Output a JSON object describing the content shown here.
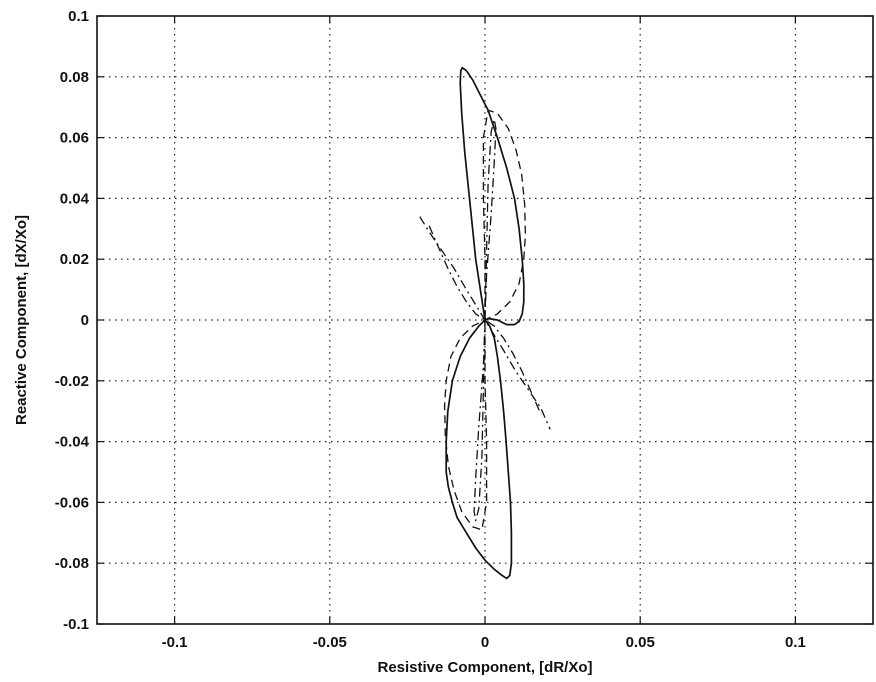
{
  "chart_data": {
    "type": "line",
    "title": "",
    "xlabel": "Resistive Component, [dR/Xo]",
    "ylabel": "Reactive Component, [dX/Xo]",
    "xlim": [
      -0.125,
      0.125
    ],
    "ylim": [
      -0.1,
      0.1
    ],
    "grid": true,
    "legend": "none",
    "x_ticks": [
      -0.1,
      -0.05,
      0,
      0.05,
      0.1
    ],
    "x_tick_labels": [
      "-0.1",
      "-0.05",
      "0",
      "0.05",
      "0.1"
    ],
    "y_ticks": [
      -0.1,
      -0.08,
      -0.06,
      -0.04,
      -0.02,
      0,
      0.02,
      0.04,
      0.06,
      0.08,
      0.1
    ],
    "y_tick_labels": [
      "-0.1",
      "-0.08",
      "-0.06",
      "-0.04",
      "-0.02",
      "0",
      "0.02",
      "0.04",
      "0.06",
      "0.08",
      "0.1"
    ],
    "series": [
      {
        "style": "solid",
        "x": [
          0,
          -0.003,
          -0.005,
          -0.0065,
          -0.0075,
          -0.008,
          -0.0078,
          -0.0073,
          -0.006,
          -0.004,
          -0.002,
          0.001,
          0.004,
          0.007,
          0.0095,
          0.011,
          0.012,
          0.0125,
          0.0125,
          0.012,
          0.011,
          0.0095,
          0.007,
          0.004,
          0.001,
          0,
          -0.002,
          -0.005,
          -0.008,
          -0.0105,
          -0.012,
          -0.0125,
          -0.0125,
          -0.0118,
          -0.0105,
          -0.009,
          -0.006,
          -0.003,
          0,
          0.003,
          0.0055,
          0.007,
          0.008,
          0.0085,
          0.0085,
          0.0082,
          0.0075,
          0.0068,
          0.006,
          0.005,
          0.004,
          0.003,
          0.0015,
          0
        ],
        "y": [
          0,
          0.02,
          0.04,
          0.055,
          0.068,
          0.078,
          0.082,
          0.083,
          0.082,
          0.079,
          0.075,
          0.069,
          0.06,
          0.05,
          0.04,
          0.03,
          0.02,
          0.012,
          0.006,
          0.002,
          -0.0005,
          -0.0015,
          -0.0015,
          0,
          0.0005,
          0,
          -0.002,
          -0.006,
          -0.012,
          -0.02,
          -0.03,
          -0.04,
          -0.05,
          -0.055,
          -0.06,
          -0.065,
          -0.07,
          -0.075,
          -0.079,
          -0.082,
          -0.084,
          -0.085,
          -0.084,
          -0.08,
          -0.07,
          -0.06,
          -0.05,
          -0.04,
          -0.03,
          -0.02,
          -0.012,
          -0.006,
          -0.002,
          0
        ]
      },
      {
        "style": "dashed",
        "x": [
          0,
          0,
          -0.0005,
          -0.0005,
          0.001,
          0.004,
          0.0075,
          0.01,
          0.0118,
          0.0128,
          0.013,
          0.0125,
          0.011,
          0.008,
          0.004,
          0,
          -0.004,
          -0.008,
          -0.011,
          -0.0125,
          -0.013,
          -0.0128,
          -0.0118,
          -0.01,
          -0.0075,
          -0.004,
          -0.001,
          0.0005,
          0.0005,
          0,
          0
        ],
        "y": [
          0,
          0.02,
          0.04,
          0.06,
          0.069,
          0.068,
          0.063,
          0.056,
          0.048,
          0.038,
          0.028,
          0.02,
          0.012,
          0.006,
          0.002,
          0,
          -0.002,
          -0.006,
          -0.012,
          -0.02,
          -0.028,
          -0.038,
          -0.048,
          -0.056,
          -0.063,
          -0.068,
          -0.069,
          -0.06,
          -0.04,
          -0.02,
          0
        ]
      },
      {
        "style": "dash-dot",
        "x": [
          -0.021,
          -0.018,
          -0.014,
          -0.01,
          -0.006,
          -0.003,
          0,
          0.003,
          0.006,
          0.01,
          0.014,
          0.018,
          0.021
        ],
        "y": [
          0.034,
          0.029,
          0.023,
          0.017,
          0.01,
          0.005,
          0,
          -0.005,
          -0.01,
          -0.017,
          -0.023,
          -0.029,
          -0.036
        ]
      },
      {
        "style": "dash-dot",
        "x": [
          -0.018,
          -0.015,
          -0.012,
          -0.009,
          -0.006,
          -0.003,
          0,
          0.003,
          0.006,
          0.009,
          0.012,
          0.015,
          0.018
        ],
        "y": [
          0.031,
          0.024,
          0.017,
          0.011,
          0.006,
          0.002,
          0,
          -0.002,
          -0.006,
          -0.011,
          -0.017,
          -0.024,
          -0.031
        ]
      },
      {
        "style": "dash-dot",
        "x": [
          0,
          0.0005,
          0.002,
          0.003,
          0.0035,
          0.003,
          0.002,
          0.001,
          0,
          -0.001,
          -0.002,
          -0.003,
          -0.0035,
          -0.003,
          -0.002,
          -0.0005,
          0
        ],
        "y": [
          0,
          0.015,
          0.035,
          0.052,
          0.063,
          0.066,
          0.062,
          0.045,
          0,
          -0.045,
          -0.062,
          -0.066,
          -0.063,
          -0.052,
          -0.035,
          -0.015,
          0
        ]
      }
    ]
  }
}
